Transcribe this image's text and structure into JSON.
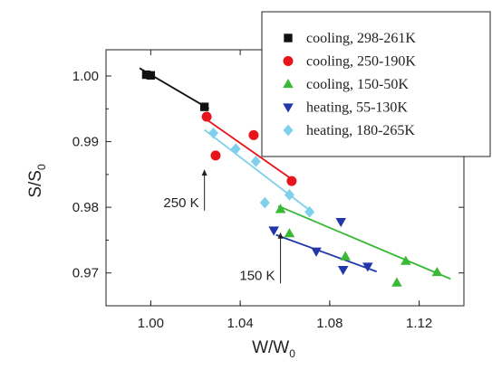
{
  "chart_data": {
    "type": "scatter",
    "title": "",
    "xlabel": "W/W",
    "xlabel_sub": "0",
    "ylabel": "S/S",
    "ylabel_sub": "0",
    "xlim": [
      0.98,
      1.14
    ],
    "ylim": [
      0.965,
      1.004
    ],
    "xticks": [
      1.0,
      1.04,
      1.08,
      1.12
    ],
    "xtick_labels": [
      "1.00",
      "1.04",
      "1.08",
      "1.12"
    ],
    "yticks": [
      0.97,
      0.98,
      0.99,
      1.0
    ],
    "ytick_labels": [
      "0.97",
      "0.98",
      "0.99",
      "1.00"
    ],
    "grid": false,
    "legend_position": "top-right",
    "series": [
      {
        "name": "cooling, 298-261K",
        "marker": "square",
        "color": "#111111",
        "points": [
          [
            0.998,
            1.0002
          ],
          [
            1.0,
            1.0001
          ],
          [
            1.024,
            0.9953
          ]
        ],
        "fit": [
          [
            0.995,
            1.0012
          ],
          [
            1.026,
            0.995
          ]
        ]
      },
      {
        "name": "cooling, 250-190K",
        "marker": "circle",
        "color": "#e8141b",
        "points": [
          [
            1.025,
            0.9938
          ],
          [
            1.029,
            0.9879
          ],
          [
            1.046,
            0.991
          ],
          [
            1.063,
            0.984
          ]
        ],
        "fit": [
          [
            1.024,
            0.9936
          ],
          [
            1.063,
            0.9843
          ]
        ]
      },
      {
        "name": "cooling, 150-50K",
        "marker": "triangle-up",
        "color": "#39b935",
        "points": [
          [
            1.058,
            0.9797
          ],
          [
            1.062,
            0.976
          ],
          [
            1.087,
            0.9725
          ],
          [
            1.11,
            0.9685
          ],
          [
            1.114,
            0.9718
          ],
          [
            1.128,
            0.9701
          ]
        ],
        "fit": [
          [
            1.057,
            0.9802
          ],
          [
            1.134,
            0.9691
          ]
        ]
      },
      {
        "name": "heating, 55-130K",
        "marker": "triangle-down",
        "color": "#2238a8",
        "points": [
          [
            1.055,
            0.9765
          ],
          [
            1.074,
            0.9733
          ],
          [
            1.085,
            0.9778
          ],
          [
            1.086,
            0.9705
          ],
          [
            1.097,
            0.971
          ]
        ],
        "fit": [
          [
            1.056,
            0.9758
          ],
          [
            1.101,
            0.9702
          ]
        ]
      },
      {
        "name": "heating, 180-265K",
        "marker": "diamond",
        "color": "#7fd0ec",
        "points": [
          [
            1.028,
            0.9913
          ],
          [
            1.038,
            0.9889
          ],
          [
            1.047,
            0.987
          ],
          [
            1.051,
            0.9807
          ],
          [
            1.062,
            0.9819
          ],
          [
            1.071,
            0.9793
          ]
        ],
        "fit": [
          [
            1.024,
            0.9918
          ],
          [
            1.072,
            0.9793
          ]
        ]
      }
    ],
    "annotations": [
      {
        "text": "250 K",
        "arrow_from": [
          1.024,
          0.9795
        ],
        "arrow_to": [
          1.024,
          0.9858
        ]
      },
      {
        "text": "150 K",
        "arrow_from": [
          1.058,
          0.9684
        ],
        "arrow_to": [
          1.058,
          0.9762
        ]
      }
    ]
  }
}
